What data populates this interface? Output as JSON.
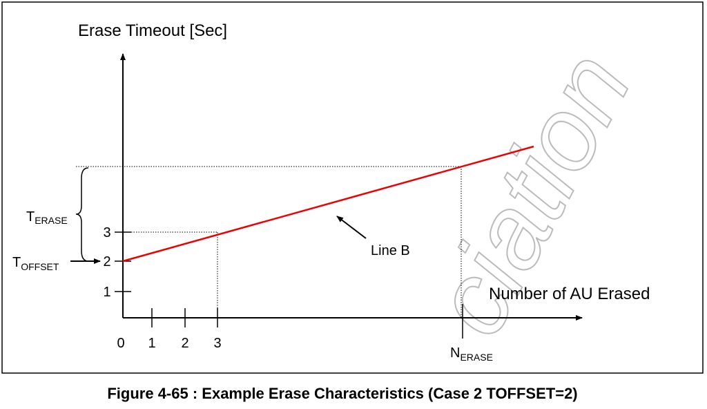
{
  "diagram": {
    "y_axis_label": "Erase Timeout [Sec]",
    "x_axis_label": "Number of AU Erased",
    "x_tick_labels": [
      "0",
      "1",
      "2",
      "3"
    ],
    "y_tick_labels": [
      "1",
      "2",
      "3"
    ],
    "t_erase": {
      "main": "T",
      "sub": "ERASE"
    },
    "t_offset": {
      "main": "T",
      "sub": "OFFSET"
    },
    "n_erase": {
      "main": "N",
      "sub": "ERASE"
    },
    "line_label": "Line B",
    "watermark": "ciation"
  },
  "caption": "Figure 4-65 : Example Erase Characteristics (Case 2 TOFFSET=2)"
}
